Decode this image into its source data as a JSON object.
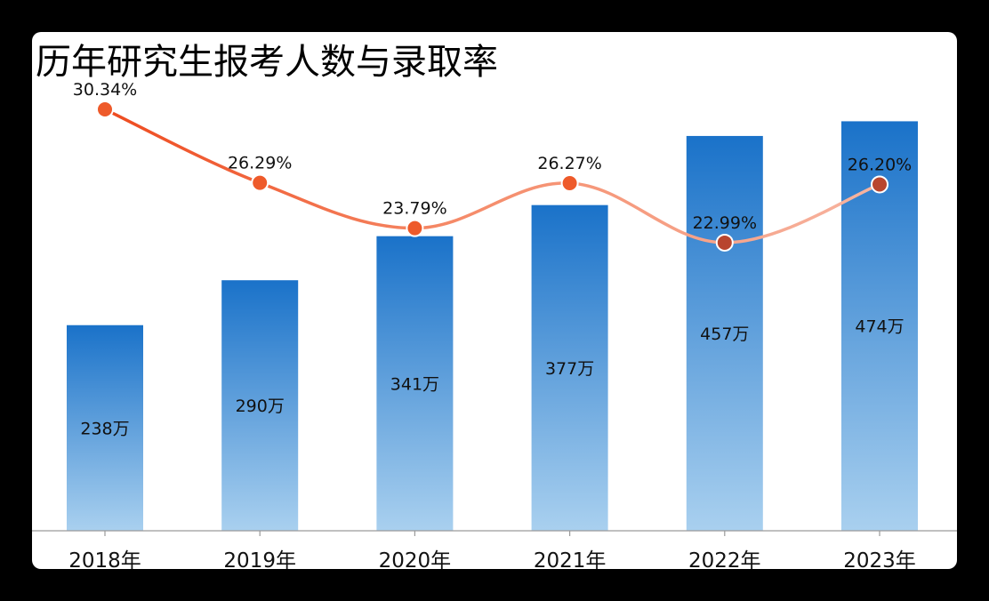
{
  "chart_data": {
    "type": "bar",
    "title": "历年研究生报考人数与录取率",
    "categories": [
      "2018年",
      "2019年",
      "2020年",
      "2021年",
      "2022年",
      "2023年"
    ],
    "series": [
      {
        "type": "bar",
        "values": [
          238,
          290,
          341,
          377,
          457,
          474
        ],
        "labels": [
          "238万",
          "290万",
          "341万",
          "377万",
          "457万",
          "474万"
        ],
        "color_top": "#1a72c9",
        "color_bottom": "#a9d0ef"
      },
      {
        "type": "line",
        "values": [
          30.34,
          26.29,
          23.79,
          26.27,
          22.99,
          26.2
        ],
        "labels": [
          "30.34%",
          "26.29%",
          "23.79%",
          "26.27%",
          "22.99%",
          "26.20%"
        ],
        "color": "#f05a2d",
        "marker_colors": [
          "#ee5a2a",
          "#ee5a2a",
          "#ee5a2a",
          "#ee5a2a",
          "#b8452e",
          "#b8452e"
        ]
      }
    ],
    "grid": false
  }
}
